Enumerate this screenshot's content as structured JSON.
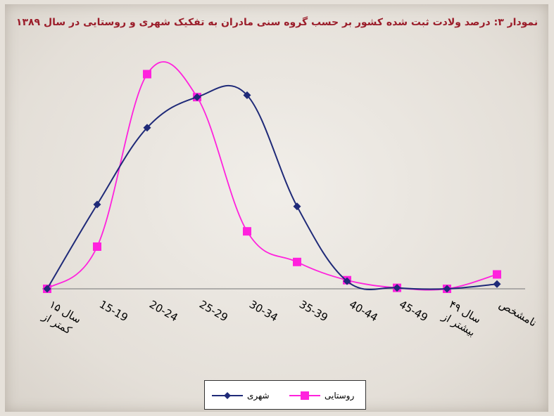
{
  "chart_data": {
    "type": "line",
    "title": "نمودار ۳: درصد ولادت ثبت شده کشور بر حسب گروه سنی مادران به تفکیک شهری و روستایی در سال ۱۳۸۹",
    "categories": [
      "کمتر از ۱۵ سال",
      "15-19",
      "20-24",
      "25-29",
      "30-34",
      "35-39",
      "40-44",
      "45-49",
      "بیشتر از ۴۹ سال",
      "نامشخص"
    ],
    "series": [
      {
        "name": "شهری",
        "color": "#1f2a78",
        "marker": "diamond",
        "values": [
          0.0,
          4.4,
          8.4,
          10.0,
          10.1,
          4.3,
          0.4,
          0.05,
          0.0,
          0.25
        ]
      },
      {
        "name": "روستایی",
        "color": "#ff22dd",
        "marker": "square",
        "values": [
          0.0,
          2.2,
          11.2,
          10.0,
          3.0,
          1.4,
          0.45,
          0.05,
          0.0,
          0.75
        ]
      }
    ],
    "ylim": [
      0,
      12.5
    ],
    "grid": false,
    "legend": "bottom",
    "smooth": true
  }
}
